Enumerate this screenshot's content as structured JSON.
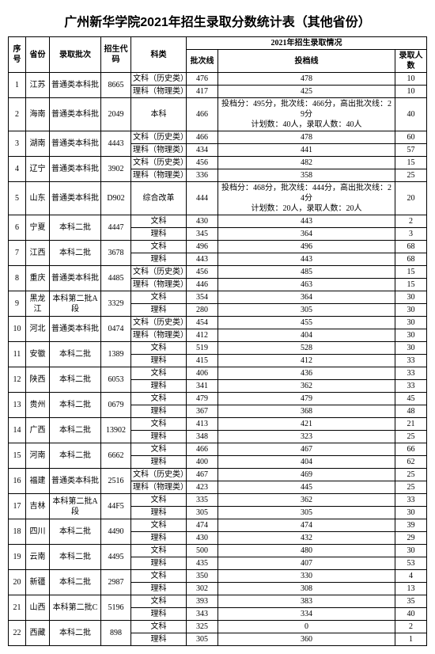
{
  "title": "广州新华学院2021年招生录取分数统计表（其他省份）",
  "headers": {
    "seq": "序号",
    "prov": "省份",
    "batch": "录取批次",
    "code": "招生代码",
    "subject": "科类",
    "group": "2021年招生录取情况",
    "line": "批次线",
    "score": "投档线",
    "count": "录取人数"
  },
  "rows": [
    {
      "seq": "1",
      "prov": "江苏",
      "batch": "普通类本科批",
      "code": "8665",
      "subs": [
        {
          "subject": "文科（历史类）",
          "line": "476",
          "score": "478",
          "count": "10"
        },
        {
          "subject": "理科（物理类）",
          "line": "417",
          "score": "425",
          "count": "10"
        }
      ]
    },
    {
      "seq": "2",
      "prov": "海南",
      "batch": "普通类本科批",
      "code": "2049",
      "subs": [
        {
          "subject": "本科",
          "line": "466",
          "score": "投档分：495分，批次线：466分，高出批次线：29分\n计划数：40人，录取人数：40人",
          "count": "40"
        }
      ]
    },
    {
      "seq": "3",
      "prov": "湖南",
      "batch": "普通类本科批",
      "code": "4443",
      "subs": [
        {
          "subject": "文科（历史类）",
          "line": "466",
          "score": "478",
          "count": "60"
        },
        {
          "subject": "理科（物理类）",
          "line": "434",
          "score": "441",
          "count": "57"
        }
      ]
    },
    {
      "seq": "4",
      "prov": "辽宁",
      "batch": "普通类本科批",
      "code": "3902",
      "subs": [
        {
          "subject": "文科（历史类）",
          "line": "456",
          "score": "482",
          "count": "15"
        },
        {
          "subject": "理科（物理类）",
          "line": "336",
          "score": "358",
          "count": "25"
        }
      ]
    },
    {
      "seq": "5",
      "prov": "山东",
      "batch": "普通类本科批",
      "code": "D902",
      "subs": [
        {
          "subject": "综合改革",
          "line": "444",
          "score": "投档分：468分，批次线：444分，高出批次线：24分\n计划数：20人，录取人数：20人",
          "count": "20"
        }
      ]
    },
    {
      "seq": "6",
      "prov": "宁夏",
      "batch": "本科二批",
      "code": "4447",
      "subs": [
        {
          "subject": "文科",
          "line": "430",
          "score": "443",
          "count": "2"
        },
        {
          "subject": "理科",
          "line": "345",
          "score": "364",
          "count": "3"
        }
      ]
    },
    {
      "seq": "7",
      "prov": "江西",
      "batch": "本科二批",
      "code": "3678",
      "subs": [
        {
          "subject": "文科",
          "line": "496",
          "score": "496",
          "count": "68"
        },
        {
          "subject": "理科",
          "line": "443",
          "score": "443",
          "count": "68"
        }
      ]
    },
    {
      "seq": "8",
      "prov": "重庆",
      "batch": "普通类本科批",
      "code": "4485",
      "subs": [
        {
          "subject": "文科（历史类）",
          "line": "456",
          "score": "485",
          "count": "15"
        },
        {
          "subject": "理科（物理类）",
          "line": "446",
          "score": "463",
          "count": "15"
        }
      ]
    },
    {
      "seq": "9",
      "prov": "黑龙江",
      "batch": "本科第二批A段",
      "code": "3329",
      "subs": [
        {
          "subject": "文科",
          "line": "354",
          "score": "364",
          "count": "30"
        },
        {
          "subject": "理科",
          "line": "280",
          "score": "305",
          "count": "30"
        }
      ]
    },
    {
      "seq": "10",
      "prov": "河北",
      "batch": "普通类本科批",
      "code": "0474",
      "subs": [
        {
          "subject": "文科（历史类）",
          "line": "454",
          "score": "455",
          "count": "30"
        },
        {
          "subject": "理科（物理类）",
          "line": "412",
          "score": "404",
          "count": "30"
        }
      ]
    },
    {
      "seq": "11",
      "prov": "安徽",
      "batch": "本科二批",
      "code": "1389",
      "subs": [
        {
          "subject": "文科",
          "line": "519",
          "score": "528",
          "count": "30"
        },
        {
          "subject": "理科",
          "line": "415",
          "score": "412",
          "count": "33"
        }
      ]
    },
    {
      "seq": "12",
      "prov": "陕西",
      "batch": "本科二批",
      "code": "6053",
      "subs": [
        {
          "subject": "文科",
          "line": "406",
          "score": "436",
          "count": "33"
        },
        {
          "subject": "理科",
          "line": "341",
          "score": "362",
          "count": "33"
        }
      ]
    },
    {
      "seq": "13",
      "prov": "贵州",
      "batch": "本科二批",
      "code": "0679",
      "subs": [
        {
          "subject": "文科",
          "line": "479",
          "score": "479",
          "count": "45"
        },
        {
          "subject": "理科",
          "line": "367",
          "score": "368",
          "count": "48"
        }
      ]
    },
    {
      "seq": "14",
      "prov": "广西",
      "batch": "本科二批",
      "code": "13902",
      "subs": [
        {
          "subject": "文科",
          "line": "413",
          "score": "421",
          "count": "21"
        },
        {
          "subject": "理科",
          "line": "348",
          "score": "323",
          "count": "25"
        }
      ]
    },
    {
      "seq": "15",
      "prov": "河南",
      "batch": "本科二批",
      "code": "6662",
      "subs": [
        {
          "subject": "文科",
          "line": "466",
          "score": "467",
          "count": "66"
        },
        {
          "subject": "理科",
          "line": "400",
          "score": "404",
          "count": "62"
        }
      ]
    },
    {
      "seq": "16",
      "prov": "福建",
      "batch": "普通类本科批",
      "code": "2516",
      "subs": [
        {
          "subject": "文科（历史类）",
          "line": "467",
          "score": "469",
          "count": "25"
        },
        {
          "subject": "理科（物理类）",
          "line": "423",
          "score": "445",
          "count": "25"
        }
      ]
    },
    {
      "seq": "17",
      "prov": "吉林",
      "batch": "本科第二批A段",
      "code": "44F5",
      "subs": [
        {
          "subject": "文科",
          "line": "335",
          "score": "362",
          "count": "33"
        },
        {
          "subject": "理科",
          "line": "305",
          "score": "305",
          "count": "30"
        }
      ]
    },
    {
      "seq": "18",
      "prov": "四川",
      "batch": "本科二批",
      "code": "4490",
      "subs": [
        {
          "subject": "文科",
          "line": "474",
          "score": "474",
          "count": "39"
        },
        {
          "subject": "理科",
          "line": "430",
          "score": "432",
          "count": "29"
        }
      ]
    },
    {
      "seq": "19",
      "prov": "云南",
      "batch": "本科二批",
      "code": "4495",
      "subs": [
        {
          "subject": "文科",
          "line": "500",
          "score": "480",
          "count": "30"
        },
        {
          "subject": "理科",
          "line": "435",
          "score": "407",
          "count": "53"
        }
      ]
    },
    {
      "seq": "20",
      "prov": "新疆",
      "batch": "本科二批",
      "code": "2987",
      "subs": [
        {
          "subject": "文科",
          "line": "350",
          "score": "330",
          "count": "4"
        },
        {
          "subject": "理科",
          "line": "302",
          "score": "308",
          "count": "13"
        }
      ]
    },
    {
      "seq": "21",
      "prov": "山西",
      "batch": "本科第二批C",
      "code": "5196",
      "subs": [
        {
          "subject": "文科",
          "line": "393",
          "score": "383",
          "count": "35"
        },
        {
          "subject": "理科",
          "line": "343",
          "score": "334",
          "count": "40"
        }
      ]
    },
    {
      "seq": "22",
      "prov": "西藏",
      "batch": "本科二批",
      "code": "898",
      "subs": [
        {
          "subject": "文科",
          "line": "325",
          "score": "0",
          "count": "2"
        },
        {
          "subject": "理科",
          "line": "305",
          "score": "360",
          "count": "1"
        }
      ]
    }
  ]
}
